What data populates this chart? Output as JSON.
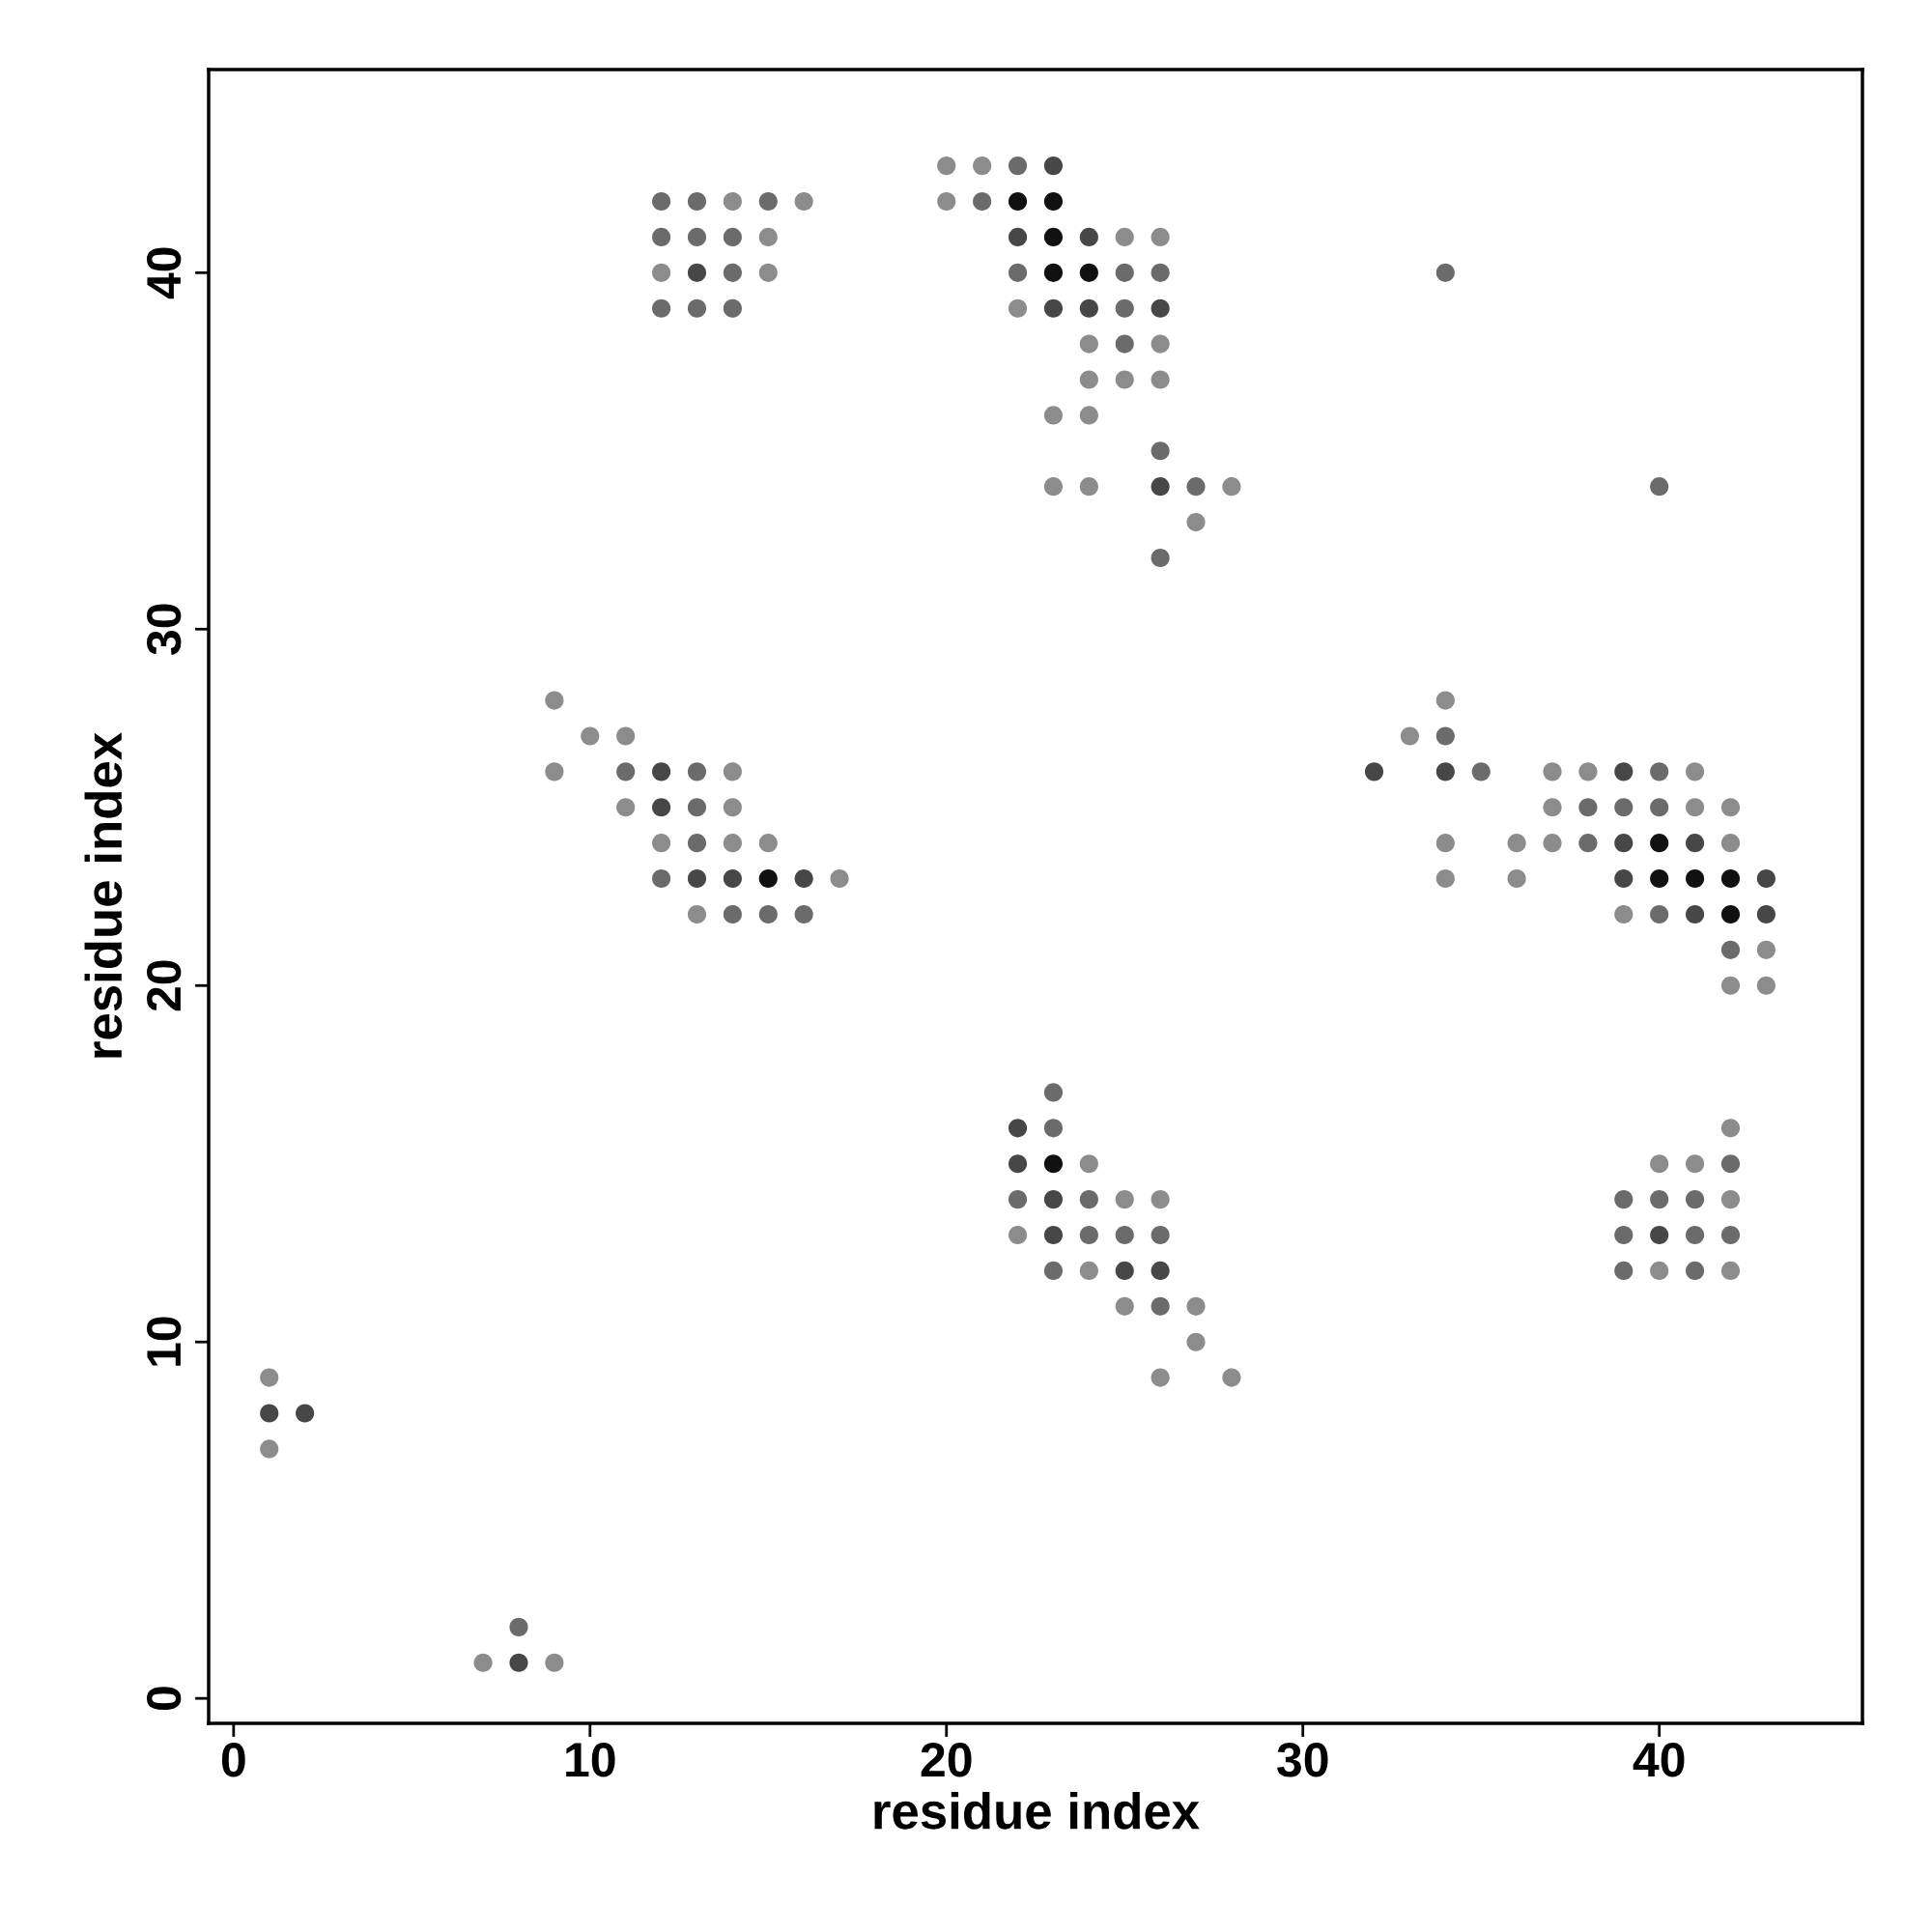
{
  "chart_data": {
    "type": "scatter",
    "xlabel": "residue index",
    "ylabel": "residue index",
    "xlim": [
      -0.7,
      45.7
    ],
    "ylim": [
      -0.7,
      45.7
    ],
    "xticks": [
      0,
      10,
      20,
      30,
      40
    ],
    "yticks": [
      0,
      10,
      20,
      30,
      40
    ],
    "grid": false,
    "marker": "circle",
    "x": [
      1,
      1,
      2,
      1,
      8,
      7,
      8,
      9,
      12,
      13,
      14,
      15,
      16,
      12,
      13,
      14,
      15,
      12,
      13,
      14,
      15,
      12,
      13,
      14,
      20,
      21,
      22,
      23,
      20,
      21,
      22,
      23,
      22,
      23,
      24,
      25,
      26,
      22,
      23,
      24,
      25,
      26,
      22,
      23,
      24,
      25,
      26,
      24,
      25,
      26,
      24,
      25,
      26,
      23,
      24,
      26,
      23,
      24,
      26,
      27,
      28,
      27,
      26,
      34,
      40,
      9,
      9,
      10,
      11,
      11,
      11,
      12,
      13,
      14,
      12,
      13,
      14,
      12,
      13,
      14,
      15,
      12,
      13,
      14,
      15,
      16,
      17,
      13,
      14,
      15,
      16,
      32,
      33,
      34,
      34,
      34,
      35,
      34,
      34,
      36,
      36,
      37,
      38,
      39,
      40,
      41,
      37,
      38,
      39,
      40,
      41,
      42,
      37,
      38,
      39,
      40,
      41,
      42,
      39,
      40,
      41,
      42,
      43,
      39,
      40,
      41,
      42,
      43,
      42,
      43,
      42,
      43,
      23,
      22,
      23,
      22,
      23,
      24,
      22,
      23,
      24,
      25,
      26,
      22,
      23,
      24,
      25,
      26,
      23,
      24,
      25,
      26,
      25,
      26,
      27,
      27,
      26,
      28,
      42,
      40,
      41,
      42,
      39,
      40,
      41,
      42,
      39,
      40,
      41,
      42,
      39,
      40,
      41,
      42
    ],
    "values": [
      9,
      8,
      8,
      7,
      2,
      1,
      1,
      1,
      42,
      42,
      42,
      42,
      42,
      41,
      41,
      41,
      41,
      40,
      40,
      40,
      40,
      39,
      39,
      39,
      43,
      43,
      43,
      43,
      42,
      42,
      42,
      42,
      41,
      41,
      41,
      41,
      41,
      40,
      40,
      40,
      40,
      40,
      39,
      39,
      39,
      39,
      39,
      38,
      38,
      38,
      37,
      37,
      37,
      36,
      36,
      35,
      34,
      34,
      34,
      34,
      34,
      33,
      32,
      40,
      34,
      28,
      26,
      27,
      27,
      26,
      25,
      26,
      26,
      26,
      25,
      25,
      25,
      24,
      24,
      24,
      24,
      23,
      23,
      23,
      23,
      23,
      23,
      22,
      22,
      22,
      22,
      26,
      27,
      28,
      27,
      26,
      26,
      24,
      23,
      24,
      23,
      26,
      26,
      26,
      26,
      26,
      25,
      25,
      25,
      25,
      25,
      25,
      24,
      24,
      24,
      24,
      24,
      24,
      23,
      23,
      23,
      23,
      23,
      22,
      22,
      22,
      22,
      22,
      21,
      21,
      20,
      20,
      17,
      16,
      16,
      15,
      15,
      15,
      14,
      14,
      14,
      14,
      14,
      13,
      13,
      13,
      13,
      13,
      12,
      12,
      12,
      12,
      11,
      11,
      11,
      10,
      9,
      9,
      16,
      15,
      15,
      15,
      14,
      14,
      14,
      14,
      13,
      13,
      13,
      13,
      12,
      12,
      12,
      12
    ],
    "colors": [
      "#8c8c8c",
      "#474747",
      "#474747",
      "#8c8c8c",
      "#6b6b6b",
      "#8c8c8c",
      "#474747",
      "#8c8c8c",
      "#6b6b6b",
      "#6b6b6b",
      "#8c8c8c",
      "#6b6b6b",
      "#8c8c8c",
      "#6b6b6b",
      "#6b6b6b",
      "#6b6b6b",
      "#8c8c8c",
      "#8c8c8c",
      "#474747",
      "#6b6b6b",
      "#8c8c8c",
      "#6b6b6b",
      "#6b6b6b",
      "#6b6b6b",
      "#8c8c8c",
      "#8c8c8c",
      "#6b6b6b",
      "#474747",
      "#8c8c8c",
      "#6b6b6b",
      "#111111",
      "#111111",
      "#474747",
      "#111111",
      "#474747",
      "#8c8c8c",
      "#8c8c8c",
      "#6b6b6b",
      "#111111",
      "#111111",
      "#6b6b6b",
      "#6b6b6b",
      "#8c8c8c",
      "#474747",
      "#474747",
      "#6b6b6b",
      "#474747",
      "#8c8c8c",
      "#6b6b6b",
      "#8c8c8c",
      "#8c8c8c",
      "#8c8c8c",
      "#8c8c8c",
      "#8c8c8c",
      "#8c8c8c",
      "#6b6b6b",
      "#8c8c8c",
      "#8c8c8c",
      "#474747",
      "#6b6b6b",
      "#8c8c8c",
      "#8c8c8c",
      "#6b6b6b",
      "#6b6b6b",
      "#6b6b6b",
      "#8c8c8c",
      "#8c8c8c",
      "#8c8c8c",
      "#8c8c8c",
      "#6b6b6b",
      "#8c8c8c",
      "#474747",
      "#6b6b6b",
      "#8c8c8c",
      "#474747",
      "#6b6b6b",
      "#8c8c8c",
      "#8c8c8c",
      "#6b6b6b",
      "#8c8c8c",
      "#8c8c8c",
      "#6b6b6b",
      "#474747",
      "#474747",
      "#111111",
      "#474747",
      "#8c8c8c",
      "#8c8c8c",
      "#6b6b6b",
      "#6b6b6b",
      "#6b6b6b",
      "#474747",
      "#8c8c8c",
      "#8c8c8c",
      "#6b6b6b",
      "#474747",
      "#6b6b6b",
      "#8c8c8c",
      "#8c8c8c",
      "#8c8c8c",
      "#8c8c8c",
      "#8c8c8c",
      "#8c8c8c",
      "#474747",
      "#6b6b6b",
      "#8c8c8c",
      "#8c8c8c",
      "#6b6b6b",
      "#6b6b6b",
      "#6b6b6b",
      "#8c8c8c",
      "#8c8c8c",
      "#8c8c8c",
      "#6b6b6b",
      "#474747",
      "#111111",
      "#474747",
      "#8c8c8c",
      "#474747",
      "#111111",
      "#111111",
      "#111111",
      "#474747",
      "#8c8c8c",
      "#6b6b6b",
      "#474747",
      "#111111",
      "#474747",
      "#6b6b6b",
      "#8c8c8c",
      "#8c8c8c",
      "#8c8c8c",
      "#6b6b6b",
      "#474747",
      "#6b6b6b",
      "#474747",
      "#111111",
      "#8c8c8c",
      "#6b6b6b",
      "#474747",
      "#6b6b6b",
      "#8c8c8c",
      "#8c8c8c",
      "#8c8c8c",
      "#474747",
      "#6b6b6b",
      "#6b6b6b",
      "#6b6b6b",
      "#6b6b6b",
      "#8c8c8c",
      "#474747",
      "#474747",
      "#8c8c8c",
      "#6b6b6b",
      "#8c8c8c",
      "#8c8c8c",
      "#8c8c8c",
      "#8c8c8c",
      "#8c8c8c",
      "#8c8c8c",
      "#8c8c8c",
      "#6b6b6b",
      "#6b6b6b",
      "#6b6b6b",
      "#6b6b6b",
      "#8c8c8c",
      "#6b6b6b",
      "#474747",
      "#6b6b6b",
      "#6b6b6b",
      "#6b6b6b",
      "#8c8c8c",
      "#6b6b6b",
      "#8c8c8c"
    ]
  }
}
